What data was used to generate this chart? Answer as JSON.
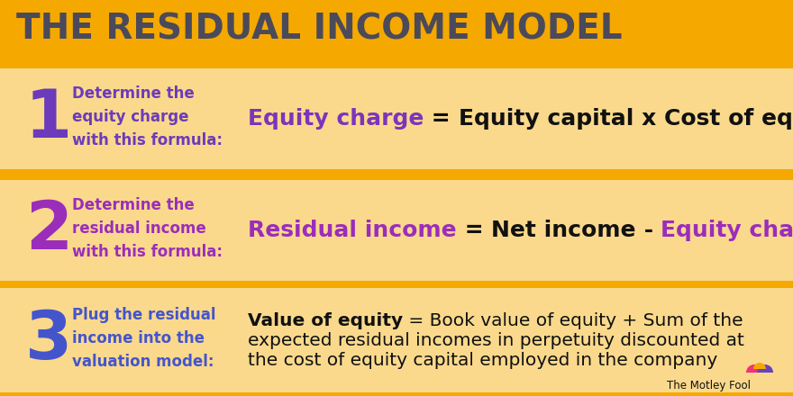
{
  "title": "THE RESIDUAL INCOME MODEL",
  "title_bg": "#F5A800",
  "title_color": "#4a4a5a",
  "row_bg": "#FAD98C",
  "separator_color": "#F5A800",
  "num1_color": "#6B3BBB",
  "num2_color": "#9B2DBB",
  "num3_color": "#4455CC",
  "desc1_color": "#6B3BBB",
  "desc2_color": "#9B2DBB",
  "desc3_color": "#4455CC",
  "formula_purple1": "#7B35BB",
  "formula_purple2": "#9B35BB",
  "formula_black": "#111111",
  "logo_text": "The Motley Fool",
  "logo_color": "#111111",
  "rows": [
    {
      "number": "1",
      "num_color": "#6B3BBB",
      "desc_color": "#6B3BBB",
      "description": "Determine the\nequity charge\nwith this formula:",
      "formula_parts": [
        {
          "text": "Equity charge",
          "color": "#7B35BB",
          "bold": true,
          "size": 18
        },
        {
          "text": " = ",
          "color": "#111111",
          "bold": true,
          "size": 18
        },
        {
          "text": "Equity capital x Cost of equity",
          "color": "#111111",
          "bold": true,
          "size": 18
        }
      ],
      "multiline": false
    },
    {
      "number": "2",
      "num_color": "#9B2DBB",
      "desc_color": "#9B2DBB",
      "description": "Determine the\nresidual income\nwith this formula:",
      "formula_parts": [
        {
          "text": "Residual income",
          "color": "#9B2DBB",
          "bold": true,
          "size": 18
        },
        {
          "text": " = ",
          "color": "#111111",
          "bold": true,
          "size": 18
        },
        {
          "text": "Net income",
          "color": "#111111",
          "bold": true,
          "size": 18
        },
        {
          "text": " - ",
          "color": "#111111",
          "bold": true,
          "size": 18
        },
        {
          "text": "Equity charge",
          "color": "#9B2DBB",
          "bold": true,
          "size": 18
        }
      ],
      "multiline": false
    },
    {
      "number": "3",
      "num_color": "#4455CC",
      "desc_color": "#4455CC",
      "description": "Plug the residual\nincome into the\nvaluation model:",
      "formula_bold": "Value of equity",
      "formula_rest_lines": [
        " = Book value of equity + Sum of the",
        "expected residual incomes in perpetuity discounted at",
        "the cost of equity capital employed in the company"
      ],
      "formula_parts": [],
      "multiline": true
    }
  ]
}
